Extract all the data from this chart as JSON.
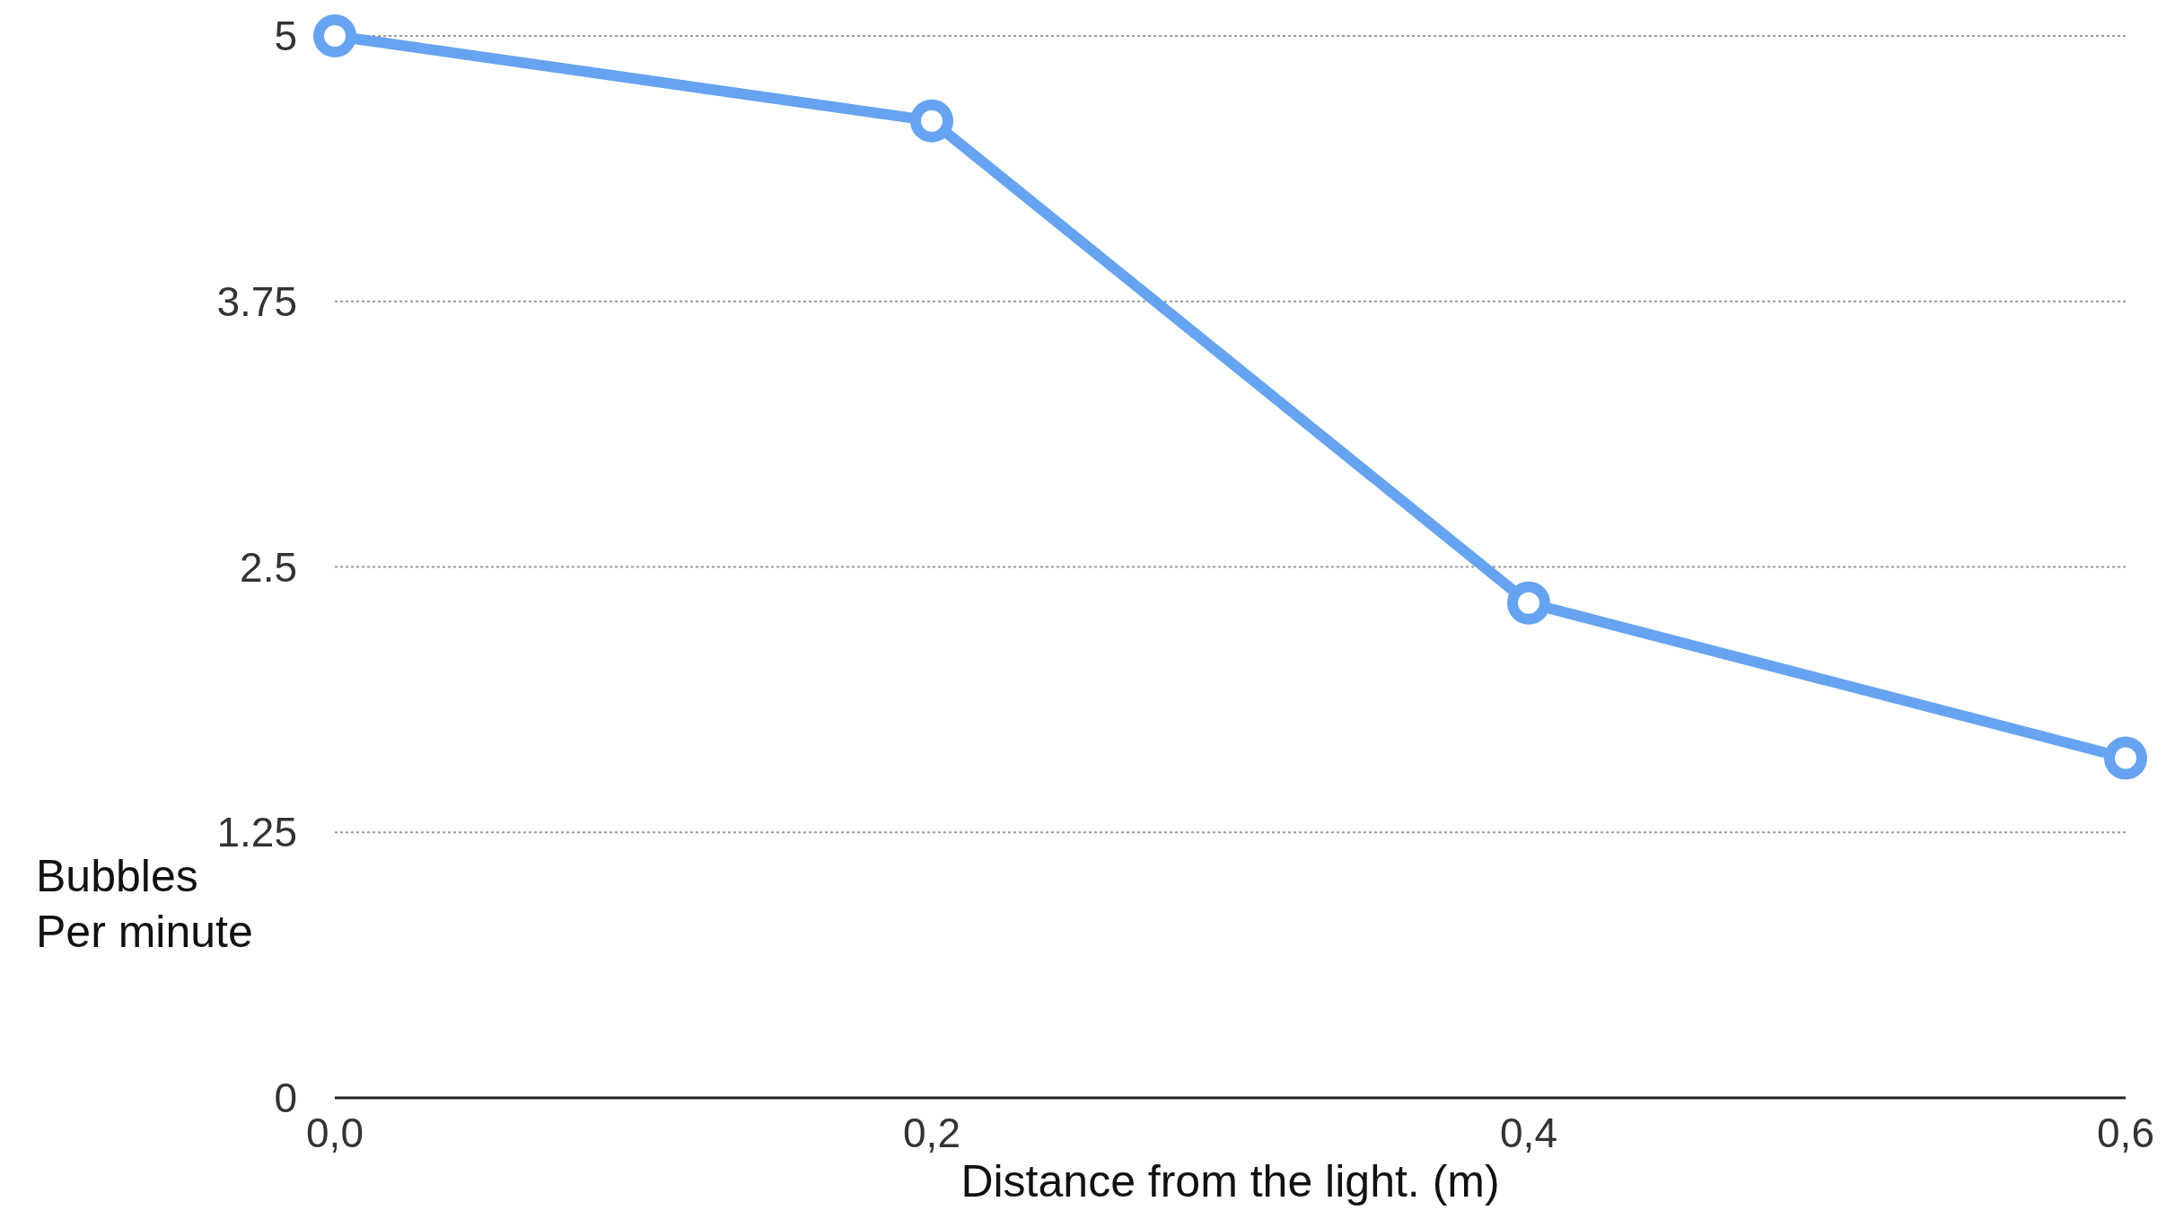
{
  "chart_data": {
    "type": "line",
    "xlabel": "Distance from the light.  (m)",
    "ylabel": "Bubbles\nPer minute",
    "categories": [
      "0,0",
      "0,2",
      "0,4",
      "0,6"
    ],
    "series": [
      {
        "color": "#66a3f0",
        "values": [
          5,
          4.6,
          2.33,
          1.6
        ]
      }
    ],
    "ylim": [
      0,
      5
    ],
    "yticks": [
      0,
      1.25,
      2.5,
      3.75,
      5
    ],
    "grid": "y",
    "marker": "circle",
    "line_style": "solid"
  }
}
